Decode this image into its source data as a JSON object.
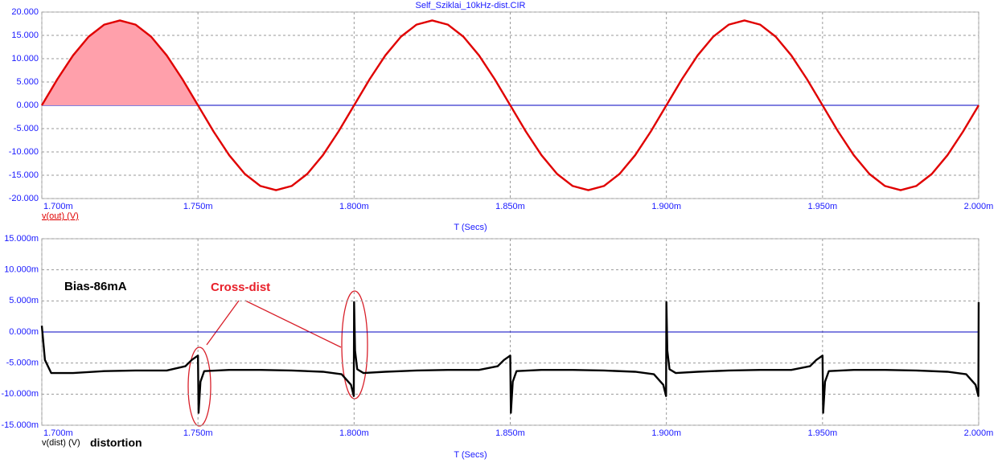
{
  "chart_data": [
    {
      "type": "line",
      "title": "Self_Sziklai_10kHz-dist.CIR",
      "xlabel": "T (Secs)",
      "ylabel": "v(out) (V)",
      "ylabel_color": "#e00000",
      "xlim": [
        0.0017,
        0.002
      ],
      "ylim": [
        -20,
        20
      ],
      "xticks": [
        {
          "value": 0.0017,
          "label": "1.700m"
        },
        {
          "value": 0.00175,
          "label": "1.750m"
        },
        {
          "value": 0.0018,
          "label": "1.800m"
        },
        {
          "value": 0.00185,
          "label": "1.850m"
        },
        {
          "value": 0.0019,
          "label": "1.900m"
        },
        {
          "value": 0.00195,
          "label": "1.950m"
        },
        {
          "value": 0.002,
          "label": "2.000m"
        }
      ],
      "yticks": [
        {
          "value": 20,
          "label": "20.000"
        },
        {
          "value": 15,
          "label": "15.000"
        },
        {
          "value": 10,
          "label": "10.000"
        },
        {
          "value": 5,
          "label": "5.000"
        },
        {
          "value": 0,
          "label": "0.000"
        },
        {
          "value": -5,
          "label": "-5.000"
        },
        {
          "value": -10,
          "label": "-10.000"
        },
        {
          "value": -15,
          "label": "-15.000"
        },
        {
          "value": -20,
          "label": "-20.000"
        }
      ],
      "grid": true,
      "zero_line_color": "#0000c0",
      "highlight": {
        "x": [
          0.0017,
          0.00175
        ],
        "color": "#ffa0ab"
      },
      "series": [
        {
          "color": "#e00000",
          "x": [
            0.0017,
            0.001705,
            0.00171,
            0.001715,
            0.00172,
            0.001725,
            0.00173,
            0.001735,
            0.00174,
            0.001745,
            0.00175,
            0.001755,
            0.00176,
            0.001765,
            0.00177,
            0.001775,
            0.00178,
            0.001785,
            0.00179,
            0.001795,
            0.0018,
            0.001805,
            0.00181,
            0.001815,
            0.00182,
            0.001825,
            0.00183,
            0.001835,
            0.00184,
            0.001845,
            0.00185,
            0.001855,
            0.00186,
            0.001865,
            0.00187,
            0.001875,
            0.00188,
            0.001885,
            0.00189,
            0.001895,
            0.0019,
            0.001905,
            0.00191,
            0.001915,
            0.00192,
            0.001925,
            0.00193,
            0.001935,
            0.00194,
            0.001945,
            0.00195,
            0.001955,
            0.00196,
            0.001965,
            0.00197,
            0.001975,
            0.00198,
            0.001985,
            0.00199,
            0.001995,
            0.002
          ],
          "values": [
            0,
            5.62,
            10.7,
            14.72,
            17.31,
            18.2,
            17.31,
            14.72,
            10.7,
            5.62,
            0,
            -5.62,
            -10.7,
            -14.72,
            -17.31,
            -18.2,
            -17.31,
            -14.72,
            -10.7,
            -5.62,
            0,
            5.62,
            10.7,
            14.72,
            17.31,
            18.2,
            17.31,
            14.72,
            10.7,
            5.62,
            0,
            -5.62,
            -10.7,
            -14.72,
            -17.31,
            -18.2,
            -17.31,
            -14.72,
            -10.7,
            -5.62,
            0,
            5.62,
            10.7,
            14.72,
            17.31,
            18.2,
            17.31,
            14.72,
            10.7,
            5.62,
            0,
            -5.62,
            -10.7,
            -14.72,
            -17.31,
            -18.2,
            -17.31,
            -14.72,
            -10.7,
            -5.62,
            0
          ]
        }
      ]
    },
    {
      "type": "line",
      "xlabel": "T (Secs)",
      "ylabel": "v(dist) (V)",
      "ylabel_color": "#000000",
      "annotations": [
        {
          "text": "Bias-86mA",
          "color": "#000000"
        },
        {
          "text": "Cross-dist",
          "color": "#e8202a"
        },
        {
          "text": "distortion",
          "color": "#000000"
        }
      ],
      "xlim": [
        0.0017,
        0.002
      ],
      "ylim": [
        -15,
        15
      ],
      "xticks": [
        {
          "value": 0.0017,
          "label": "1.700m"
        },
        {
          "value": 0.00175,
          "label": "1.750m"
        },
        {
          "value": 0.0018,
          "label": "1.800m"
        },
        {
          "value": 0.00185,
          "label": "1.850m"
        },
        {
          "value": 0.0019,
          "label": "1.900m"
        },
        {
          "value": 0.00195,
          "label": "1.950m"
        },
        {
          "value": 0.002,
          "label": "2.000m"
        }
      ],
      "yticks": [
        {
          "value": 15,
          "label": "15.000m"
        },
        {
          "value": 10,
          "label": "10.000m"
        },
        {
          "value": 5,
          "label": "5.000m"
        },
        {
          "value": 0,
          "label": "0.000m"
        },
        {
          "value": -5,
          "label": "-5.000m"
        },
        {
          "value": -10,
          "label": "-10.000m"
        },
        {
          "value": -15,
          "label": "-15.000m"
        }
      ],
      "grid": true,
      "zero_line_color": "#0000c0",
      "series": [
        {
          "color": "#000000",
          "x": [
            0.0017,
            0.001701,
            0.001703,
            0.00171,
            0.00172,
            0.00173,
            0.00174,
            0.001746,
            0.001748,
            0.00175,
            0.0017502,
            0.0017508,
            0.001752,
            0.00176,
            0.00177,
            0.00178,
            0.00179,
            0.001796,
            0.001799,
            0.0017999,
            0.0018,
            0.0018003,
            0.001801,
            0.001803,
            0.00181,
            0.00182,
            0.00183,
            0.00184,
            0.001846,
            0.001848,
            0.00185,
            0.0018502,
            0.0018508,
            0.001852,
            0.00186,
            0.00187,
            0.00188,
            0.00189,
            0.001896,
            0.001899,
            0.0018999,
            0.0019,
            0.0019003,
            0.001901,
            0.001903,
            0.00191,
            0.00192,
            0.00193,
            0.00194,
            0.001946,
            0.001948,
            0.00195,
            0.0019502,
            0.0019508,
            0.001952,
            0.00196,
            0.00197,
            0.00198,
            0.00199,
            0.001996,
            0.001999,
            0.0019999,
            0.002
          ],
          "values": [
            1.0,
            -4.5,
            -6.6,
            -6.6,
            -6.3,
            -6.2,
            -6.2,
            -5.5,
            -4.5,
            -3.8,
            -13.0,
            -8.0,
            -6.3,
            -6.1,
            -6.1,
            -6.2,
            -6.4,
            -6.8,
            -8.5,
            -10.3,
            4.8,
            -3.0,
            -6.0,
            -6.6,
            -6.4,
            -6.2,
            -6.1,
            -6.1,
            -5.5,
            -4.5,
            -3.8,
            -13.0,
            -8.0,
            -6.3,
            -6.1,
            -6.1,
            -6.2,
            -6.4,
            -6.8,
            -8.5,
            -10.3,
            4.8,
            -3.0,
            -6.0,
            -6.6,
            -6.4,
            -6.2,
            -6.1,
            -6.1,
            -5.5,
            -4.5,
            -3.8,
            -13.0,
            -8.0,
            -6.3,
            -6.1,
            -6.1,
            -6.2,
            -6.4,
            -6.8,
            -8.5,
            -10.3,
            4.8
          ]
        }
      ]
    }
  ]
}
